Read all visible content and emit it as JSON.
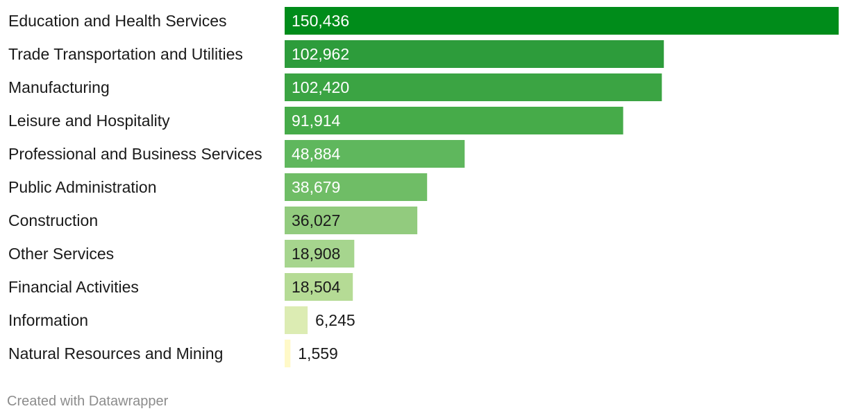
{
  "chart_data": {
    "type": "bar",
    "orientation": "horizontal",
    "categories": [
      "Education and Health Services",
      "Trade Transportation and Utilities",
      "Manufacturing",
      "Leisure and Hospitality",
      "Professional and Business Services",
      "Public Administration",
      "Construction",
      "Other Services",
      "Financial Activities",
      "Information",
      "Natural Resources and Mining"
    ],
    "values": [
      150436,
      102962,
      102420,
      91914,
      48884,
      38679,
      36027,
      18908,
      18504,
      6245,
      1559
    ],
    "value_labels": [
      "150,436",
      "102,962",
      "102,420",
      "91,914",
      "48,884",
      "38,679",
      "36,027",
      "18,908",
      "18,504",
      "6,245",
      "1,559"
    ],
    "bar_colors": [
      "#008c1a",
      "#2d9c3b",
      "#3ba443",
      "#46ab49",
      "#5fb75d",
      "#6fbd66",
      "#92cb7e",
      "#a6d58e",
      "#b5db95",
      "#dcecb3",
      "#fff9c8"
    ],
    "value_label_colors": [
      "#ffffff",
      "#ffffff",
      "#ffffff",
      "#ffffff",
      "#ffffff",
      "#ffffff",
      "#1a1a1a",
      "#1a1a1a",
      "#1a1a1a",
      "#1a1a1a",
      "#1a1a1a"
    ],
    "grid": false,
    "legend": "none"
  },
  "footer": {
    "credit": "Created with Datawrapper"
  }
}
